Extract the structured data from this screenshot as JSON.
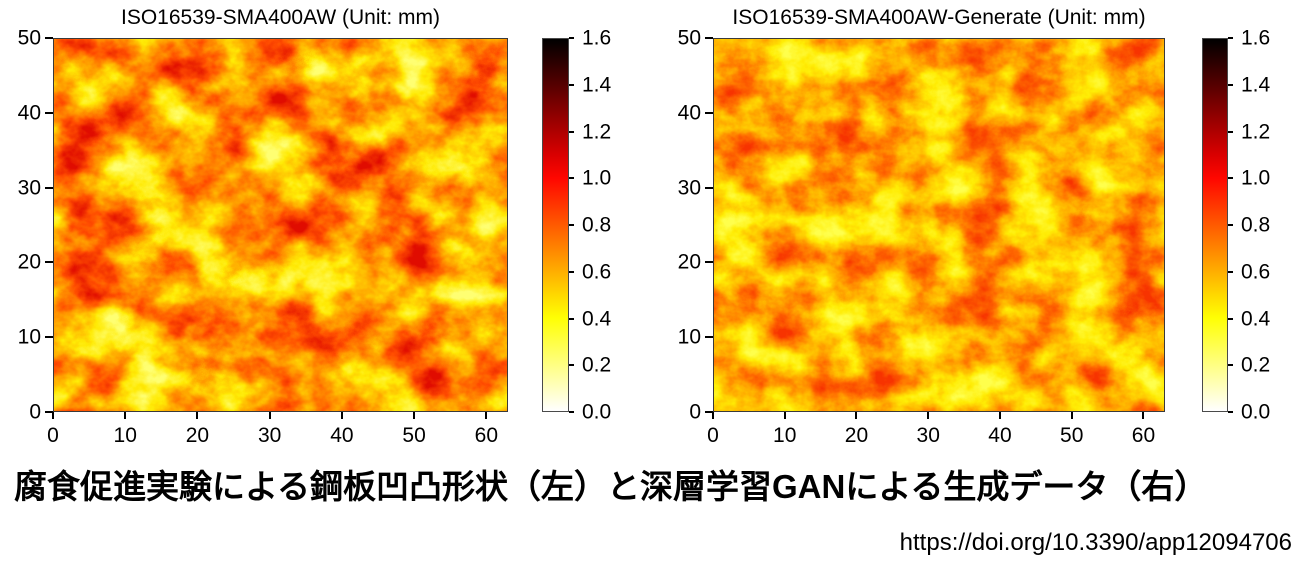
{
  "chart_data": [
    {
      "type": "heatmap",
      "title": "ISO16539-SMA400AW (Unit: mm)",
      "xlabel": "",
      "ylabel": "",
      "xlim": [
        0,
        63
      ],
      "ylim": [
        0,
        50
      ],
      "x_ticks": [
        0,
        10,
        20,
        30,
        40,
        50,
        60
      ],
      "y_ticks": [
        0,
        10,
        20,
        30,
        40,
        50
      ],
      "colorbar_range": [
        0.0,
        1.6
      ],
      "colorbar_ticks": [
        0.0,
        0.2,
        0.4,
        0.6,
        0.8,
        1.0,
        1.2,
        1.4,
        1.6
      ],
      "value_unit": "mm",
      "colormap": "hot reversed: 0.0 white, 0.2 pale yellow, 0.4 yellow, 0.6 orange, 0.8 orange-red, 1.0 red, 1.2 dark red, 1.4 maroon, 1.6 black",
      "observed_value_range": [
        0.3,
        1.1
      ],
      "grid": false,
      "legend": false,
      "pattern": "measured corroded steel plate roughness: irregular blotchy field, orange-red patches ~5-10 mm across separated by bright yellow ridge veins, occasional deep red spots"
    },
    {
      "type": "heatmap",
      "title": "ISO16539-SMA400AW-Generate (Unit: mm)",
      "xlabel": "",
      "ylabel": "",
      "xlim": [
        0,
        63
      ],
      "ylim": [
        0,
        50
      ],
      "x_ticks": [
        0,
        10,
        20,
        30,
        40,
        50,
        60
      ],
      "y_ticks": [
        0,
        10,
        20,
        30,
        40,
        50
      ],
      "colorbar_range": [
        0.0,
        1.6
      ],
      "colorbar_ticks": [
        0.0,
        0.2,
        0.4,
        0.6,
        0.8,
        1.0,
        1.2,
        1.4,
        1.6
      ],
      "value_unit": "mm",
      "colormap": "hot reversed: 0.0 white, 0.2 pale yellow, 0.4 yellow, 0.6 orange, 0.8 orange-red, 1.0 red, 1.2 dark red, 1.4 maroon, 1.6 black",
      "observed_value_range": [
        0.35,
        0.95
      ],
      "grid": false,
      "legend": false,
      "pattern": "GAN-generated roughness field: finer and more uniform orange texture with thin yellow veins, fewer deep red patches than measured data"
    }
  ],
  "panels": [
    {
      "title": "ISO16539-SMA400AW (Unit: mm)",
      "x_ticks": [
        "0",
        "10",
        "20",
        "30",
        "40",
        "50",
        "60"
      ],
      "y_ticks": [
        "0",
        "10",
        "20",
        "30",
        "40",
        "50"
      ],
      "cb_ticks": [
        "0.0",
        "0.2",
        "0.4",
        "0.6",
        "0.8",
        "1.0",
        "1.2",
        "1.4",
        "1.6"
      ]
    },
    {
      "title": "ISO16539-SMA400AW-Generate (Unit: mm)",
      "x_ticks": [
        "0",
        "10",
        "20",
        "30",
        "40",
        "50",
        "60"
      ],
      "y_ticks": [
        "0",
        "10",
        "20",
        "30",
        "40",
        "50"
      ],
      "cb_ticks": [
        "0.0",
        "0.2",
        "0.4",
        "0.6",
        "0.8",
        "1.0",
        "1.2",
        "1.4",
        "1.6"
      ]
    }
  ],
  "caption": "腐食促進実験による鋼板凹凸形状（左）と深層学習GANによる生成データ（右）",
  "doi": "https://doi.org/10.3390/app12094706",
  "colors": {
    "background": "#ffffff",
    "text": "#000000",
    "axis": "#000000",
    "heat_palette": [
      "#ffffff",
      "#ffff04",
      "#ffae00",
      "#ff5a00",
      "#ff0700",
      "#af0000",
      "#000000"
    ]
  }
}
